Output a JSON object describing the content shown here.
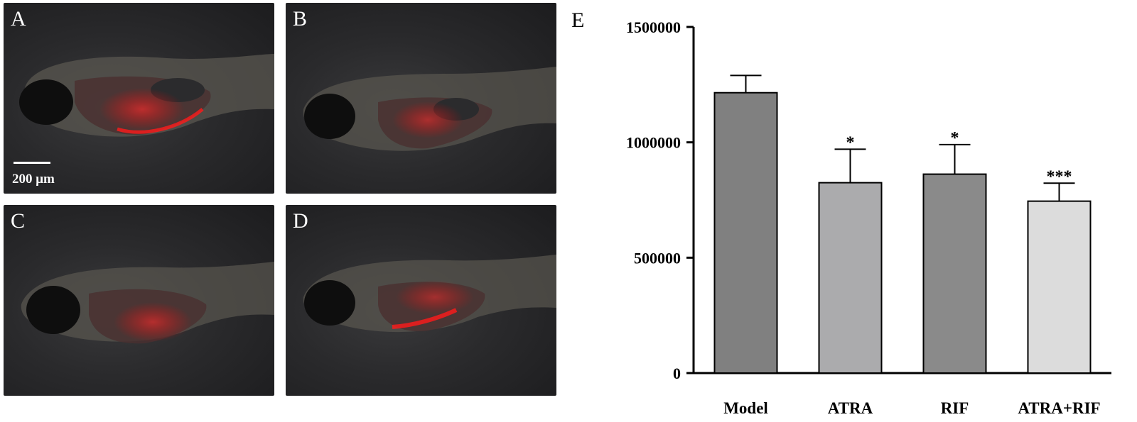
{
  "panels": [
    {
      "label": "A"
    },
    {
      "label": "B"
    },
    {
      "label": "C"
    },
    {
      "label": "D"
    }
  ],
  "scale_bar": {
    "label": "200 μm"
  },
  "chart_panel_label": "E",
  "chart_data": {
    "type": "bar",
    "categories": [
      "Model",
      "ATRA",
      "RIF",
      "ATRA+RIF"
    ],
    "values": [
      1215000,
      825000,
      862000,
      745000
    ],
    "errors": [
      75000,
      145000,
      128000,
      78000
    ],
    "significance": [
      "",
      "*",
      "*",
      "***"
    ],
    "bar_colors": [
      "#808080",
      "#ababad",
      "#8a8a8a",
      "#dcdcdc"
    ],
    "ylim": [
      0,
      1500000
    ],
    "yticks": [
      0,
      500000,
      1000000,
      1500000
    ],
    "ytick_labels": [
      "0",
      "500000",
      "1000000",
      "1500000"
    ],
    "xlabel": "",
    "ylabel": "",
    "grid": false
  }
}
